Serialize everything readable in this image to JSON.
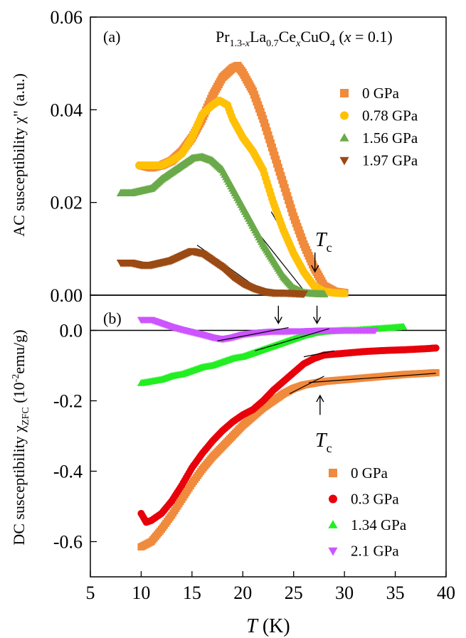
{
  "chart_data": [
    {
      "type": "scatter",
      "panel_label": "(a)",
      "title_parts": {
        "a": "Pr",
        "a_sub": "1.3-",
        "a_sub_it": "x",
        "b": "La",
        "b_sub": "0.7",
        "c": "Ce",
        "c_sub_it": "x",
        "d": "CuO",
        "d_sub": "4",
        "e": " (",
        "e_it": "x",
        "f": " = 0.1)"
      },
      "ylabel": "AC susceptibility χ\" (a.u.)",
      "xlim": [
        5,
        40
      ],
      "ylim": [
        0,
        0.06
      ],
      "yticks": [
        "0.00",
        "0.02",
        "0.04",
        "0.06"
      ],
      "annotation": {
        "T": "T",
        "sub": "c"
      },
      "series": [
        {
          "name": "0 GPa",
          "color": "#f08a3c",
          "marker": "square",
          "points": [
            [
              10,
              0.028
            ],
            [
              11,
              0.0275
            ],
            [
              12,
              0.028
            ],
            [
              13,
              0.029
            ],
            [
              14,
              0.031
            ],
            [
              15,
              0.034
            ],
            [
              16,
              0.038
            ],
            [
              17,
              0.043
            ],
            [
              18,
              0.047
            ],
            [
              19,
              0.049
            ],
            [
              19.5,
              0.0495
            ],
            [
              20,
              0.048
            ],
            [
              21,
              0.044
            ],
            [
              22,
              0.038
            ],
            [
              23,
              0.031
            ],
            [
              24,
              0.024
            ],
            [
              25,
              0.017
            ],
            [
              26,
              0.011
            ],
            [
              27,
              0.006
            ],
            [
              28,
              0.002
            ],
            [
              29,
              0.0008
            ],
            [
              30,
              0.0005
            ]
          ]
        },
        {
          "name": "0.78 GPa",
          "color": "#ffc107",
          "marker": "circle",
          "points": [
            [
              9.8,
              0.028
            ],
            [
              11,
              0.028
            ],
            [
              12,
              0.028
            ],
            [
              13,
              0.029
            ],
            [
              14,
              0.0305
            ],
            [
              15,
              0.034
            ],
            [
              16,
              0.039
            ],
            [
              17,
              0.041
            ],
            [
              17.7,
              0.042
            ],
            [
              18.5,
              0.041
            ],
            [
              19,
              0.038
            ],
            [
              20,
              0.034
            ],
            [
              21,
              0.031
            ],
            [
              22,
              0.027
            ],
            [
              23,
              0.02
            ],
            [
              24,
              0.014
            ],
            [
              25,
              0.009
            ],
            [
              26,
              0.005
            ],
            [
              27,
              0.002
            ],
            [
              28,
              0.0008
            ],
            [
              29,
              0.0005
            ],
            [
              30,
              0.0004
            ]
          ]
        },
        {
          "name": "1.56 GPa",
          "color": "#6aaa4a",
          "marker": "triangle-up",
          "points": [
            [
              8,
              0.022
            ],
            [
              9,
              0.022
            ],
            [
              10,
              0.0225
            ],
            [
              11,
              0.023
            ],
            [
              12,
              0.025
            ],
            [
              13,
              0.0265
            ],
            [
              14,
              0.028
            ],
            [
              15,
              0.0295
            ],
            [
              16,
              0.0298
            ],
            [
              17,
              0.029
            ],
            [
              18,
              0.027
            ],
            [
              19,
              0.023
            ],
            [
              20,
              0.019
            ],
            [
              21,
              0.015
            ],
            [
              22,
              0.011
            ],
            [
              23,
              0.0075
            ],
            [
              24,
              0.004
            ],
            [
              25,
              0.0015
            ],
            [
              26,
              0.0005
            ],
            [
              27,
              0.0003
            ],
            [
              28,
              0.0002
            ]
          ]
        },
        {
          "name": "1.97 GPa",
          "color": "#9a4a12",
          "marker": "triangle-down",
          "points": [
            [
              8,
              0.007
            ],
            [
              9,
              0.007
            ],
            [
              10,
              0.0065
            ],
            [
              11,
              0.0065
            ],
            [
              12,
              0.007
            ],
            [
              13,
              0.0075
            ],
            [
              14,
              0.0085
            ],
            [
              15,
              0.0095
            ],
            [
              16,
              0.009
            ],
            [
              17,
              0.0075
            ],
            [
              18,
              0.006
            ],
            [
              19,
              0.004
            ],
            [
              20,
              0.0025
            ],
            [
              21,
              0.0015
            ],
            [
              22,
              0.0008
            ],
            [
              23,
              0.0005
            ],
            [
              24,
              0.0005
            ],
            [
              25,
              0.0004
            ],
            [
              26,
              0.0003
            ]
          ]
        }
      ],
      "fit_lines": [
        [
          [
            15.5,
            0.0108
          ],
          [
            22.3,
            0.0002
          ]
        ],
        [
          [
            21.3,
            0.014
          ],
          [
            26.3,
            0.0002
          ]
        ],
        [
          [
            22.8,
            0.018
          ],
          [
            27.4,
            0.0002
          ]
        ]
      ],
      "arrow_x": 27.1
    },
    {
      "type": "scatter",
      "panel_label": "(b)",
      "ylabel_main": "DC susceptibility χ",
      "ylabel_sub": "ZFC",
      "ylabel_units": " (10",
      "ylabel_exp": "-2",
      "ylabel_units2": "emu/g)",
      "xlabel_it": "T",
      "xlabel_rest": " (K)",
      "xlim": [
        5,
        40
      ],
      "ylim": [
        -0.7,
        0.1
      ],
      "xticks": [
        "5",
        "10",
        "15",
        "20",
        "25",
        "30",
        "35",
        "40"
      ],
      "yticks": [
        "-0.6",
        "-0.4",
        "-0.2",
        "0.0"
      ],
      "annotation": {
        "T": "T",
        "sub": "c"
      },
      "series": [
        {
          "name": "0 GPa",
          "color": "#f08a3c",
          "marker": "square",
          "points": [
            [
              10,
              -0.615
            ],
            [
              11,
              -0.6
            ],
            [
              12,
              -0.565
            ],
            [
              13,
              -0.525
            ],
            [
              14,
              -0.48
            ],
            [
              15,
              -0.435
            ],
            [
              16,
              -0.395
            ],
            [
              17,
              -0.36
            ],
            [
              18,
              -0.33
            ],
            [
              19,
              -0.3
            ],
            [
              20,
              -0.27
            ],
            [
              21,
              -0.245
            ],
            [
              22,
              -0.22
            ],
            [
              23,
              -0.2
            ],
            [
              24,
              -0.18
            ],
            [
              25,
              -0.165
            ],
            [
              26,
              -0.155
            ],
            [
              27,
              -0.15
            ],
            [
              28,
              -0.145
            ],
            [
              30,
              -0.14
            ],
            [
              32,
              -0.135
            ],
            [
              34,
              -0.13
            ],
            [
              36,
              -0.125
            ],
            [
              38,
              -0.122
            ],
            [
              39,
              -0.12
            ]
          ]
        },
        {
          "name": "0.3 GPa",
          "color": "#e8000a",
          "marker": "circle",
          "points": [
            [
              10,
              -0.52
            ],
            [
              10.5,
              -0.545
            ],
            [
              11,
              -0.54
            ],
            [
              12,
              -0.52
            ],
            [
              13,
              -0.485
            ],
            [
              14,
              -0.44
            ],
            [
              15,
              -0.39
            ],
            [
              16,
              -0.35
            ],
            [
              17,
              -0.315
            ],
            [
              18,
              -0.285
            ],
            [
              19,
              -0.26
            ],
            [
              20,
              -0.24
            ],
            [
              21,
              -0.225
            ],
            [
              22,
              -0.2
            ],
            [
              23,
              -0.17
            ],
            [
              24,
              -0.145
            ],
            [
              25,
              -0.12
            ],
            [
              26,
              -0.095
            ],
            [
              27,
              -0.08
            ],
            [
              28,
              -0.07
            ],
            [
              30,
              -0.065
            ],
            [
              32,
              -0.06
            ],
            [
              34,
              -0.057
            ],
            [
              36,
              -0.055
            ],
            [
              38,
              -0.052
            ],
            [
              39,
              -0.05
            ]
          ]
        },
        {
          "name": "1.34 GPa",
          "color": "#22ee22",
          "marker": "triangle-up",
          "points": [
            [
              10,
              -0.15
            ],
            [
              11,
              -0.145
            ],
            [
              12,
              -0.14
            ],
            [
              13,
              -0.13
            ],
            [
              14,
              -0.125
            ],
            [
              15,
              -0.115
            ],
            [
              16,
              -0.105
            ],
            [
              17,
              -0.1
            ],
            [
              18,
              -0.09
            ],
            [
              19,
              -0.08
            ],
            [
              20,
              -0.075
            ],
            [
              21,
              -0.065
            ],
            [
              22,
              -0.055
            ],
            [
              23,
              -0.045
            ],
            [
              24,
              -0.035
            ],
            [
              25,
              -0.025
            ],
            [
              26,
              -0.015
            ],
            [
              27,
              -0.008
            ],
            [
              28,
              -0.004
            ],
            [
              29,
              -0.002
            ],
            [
              30,
              0
            ],
            [
              31,
              0
            ],
            [
              32,
              0.002
            ],
            [
              33,
              0.004
            ],
            [
              34,
              0.006
            ],
            [
              35,
              0.008
            ],
            [
              35.8,
              0.01
            ]
          ]
        },
        {
          "name": "2.1 GPa",
          "color": "#cc55ff",
          "marker": "triangle-down",
          "points": [
            [
              10,
              0.03
            ],
            [
              11,
              0.03
            ],
            [
              12,
              0.02
            ],
            [
              13,
              0.01
            ],
            [
              14,
              0.002
            ],
            [
              15,
              -0.005
            ],
            [
              16,
              -0.012
            ],
            [
              17,
              -0.02
            ],
            [
              18,
              -0.025
            ],
            [
              19,
              -0.02
            ],
            [
              20,
              -0.012
            ],
            [
              21,
              -0.008
            ],
            [
              22,
              -0.005
            ],
            [
              23,
              -0.003
            ],
            [
              24,
              -0.003
            ],
            [
              25,
              -0.002
            ],
            [
              26,
              -0.002
            ],
            [
              27,
              -0.001
            ],
            [
              28,
              0
            ],
            [
              29,
              0
            ],
            [
              30,
              0
            ],
            [
              31,
              0
            ],
            [
              32,
              0
            ],
            [
              33,
              0
            ]
          ]
        }
      ],
      "zero_line": 0.0,
      "fit_lines": [
        [
          [
            17.5,
            -0.03
          ],
          [
            24.5,
            0.008
          ]
        ],
        [
          [
            21.2,
            -0.058
          ],
          [
            28.5,
            0.005
          ]
        ],
        [
          [
            26,
            -0.075
          ],
          [
            29,
            -0.058
          ]
        ],
        [
          [
            24.6,
            -0.18
          ],
          [
            28,
            -0.13
          ]
        ],
        [
          [
            26.5,
            -0.148
          ],
          [
            39,
            -0.122
          ]
        ]
      ],
      "arrows": [
        {
          "x": 23.5,
          "y_from": 0.07,
          "y_to": 0.02,
          "dir": "down"
        },
        {
          "x": 27.3,
          "y_from": 0.07,
          "y_to": 0.02,
          "dir": "down"
        },
        {
          "x": 27.6,
          "y_from": -0.24,
          "y_to": -0.185,
          "dir": "up"
        }
      ]
    }
  ]
}
